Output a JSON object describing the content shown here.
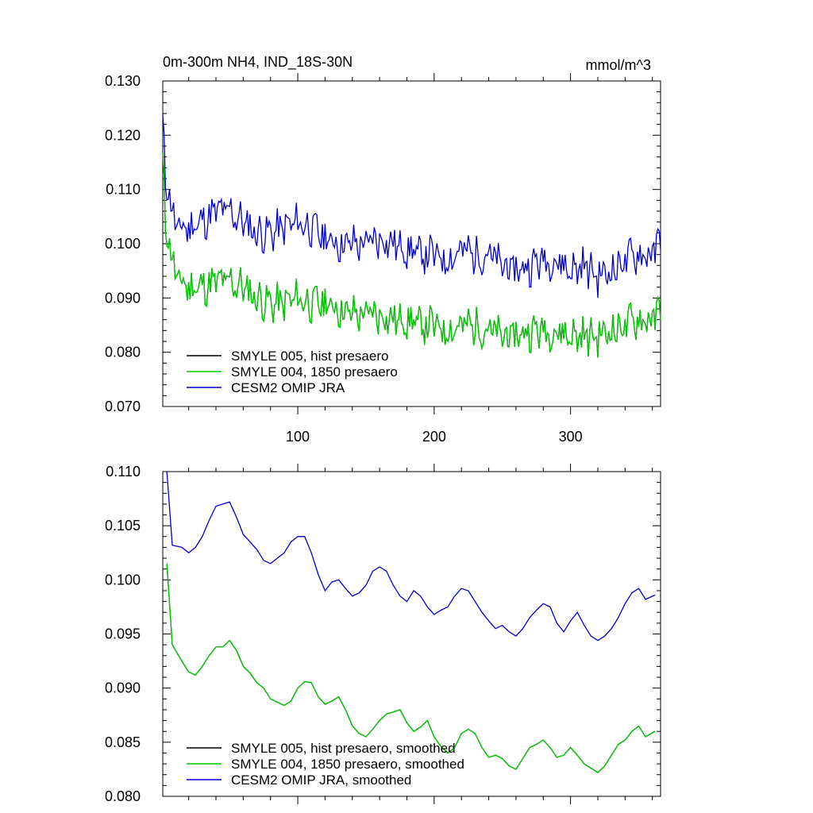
{
  "chart_data": [
    {
      "type": "line",
      "title": "0m-300m NH4, IND_18S-30N",
      "units": "mmol/m^3",
      "xlim": [
        1,
        366
      ],
      "ylim": [
        0.07,
        0.13
      ],
      "x_ticks": [
        100,
        200,
        300
      ],
      "x_tick_labels": [
        "100",
        "200",
        "300"
      ],
      "y_ticks": [
        0.07,
        0.08,
        0.09,
        0.1,
        0.11,
        0.12,
        0.13
      ],
      "y_tick_labels": [
        "0.070",
        "0.080",
        "0.090",
        "0.100",
        "0.110",
        "0.120",
        "0.130"
      ],
      "legend_position": "bottom-left",
      "noisy": true,
      "series": [
        {
          "name": "SMYLE 005, hist presaero",
          "color": "#000000",
          "x": [
            1,
            3,
            5,
            10,
            20,
            30,
            40,
            50,
            60,
            70,
            80,
            90,
            100,
            110,
            120,
            130,
            140,
            150,
            160,
            170,
            180,
            190,
            200,
            210,
            220,
            230,
            240,
            250,
            260,
            270,
            280,
            290,
            300,
            310,
            320,
            330,
            340,
            350,
            360,
            366
          ],
          "values": [
            0.115,
            0.103,
            0.102,
            0.094,
            0.092,
            0.092,
            0.093,
            0.093,
            0.092,
            0.09,
            0.089,
            0.089,
            0.09,
            0.089,
            0.089,
            0.088,
            0.087,
            0.087,
            0.087,
            0.086,
            0.086,
            0.085,
            0.085,
            0.084,
            0.085,
            0.085,
            0.084,
            0.083,
            0.083,
            0.084,
            0.084,
            0.084,
            0.083,
            0.083,
            0.083,
            0.084,
            0.085,
            0.086,
            0.086,
            0.088
          ]
        },
        {
          "name": "SMYLE 004, 1850 presaero",
          "color": "#00cc00",
          "x": [
            1,
            3,
            5,
            10,
            20,
            30,
            40,
            50,
            60,
            70,
            80,
            90,
            100,
            110,
            120,
            130,
            140,
            150,
            160,
            170,
            180,
            190,
            200,
            210,
            220,
            230,
            240,
            250,
            260,
            270,
            280,
            290,
            300,
            310,
            320,
            330,
            340,
            350,
            360,
            366
          ],
          "values": [
            0.115,
            0.103,
            0.102,
            0.094,
            0.092,
            0.092,
            0.093,
            0.093,
            0.092,
            0.09,
            0.089,
            0.089,
            0.09,
            0.089,
            0.089,
            0.088,
            0.087,
            0.087,
            0.087,
            0.086,
            0.086,
            0.085,
            0.085,
            0.084,
            0.085,
            0.085,
            0.084,
            0.083,
            0.083,
            0.084,
            0.084,
            0.084,
            0.083,
            0.083,
            0.083,
            0.084,
            0.085,
            0.086,
            0.086,
            0.088
          ]
        },
        {
          "name": "CESM2 OMIP JRA",
          "color": "#0000cc",
          "x": [
            1,
            3,
            5,
            10,
            20,
            30,
            40,
            50,
            60,
            70,
            80,
            90,
            100,
            110,
            120,
            130,
            140,
            150,
            160,
            170,
            180,
            190,
            200,
            210,
            220,
            230,
            240,
            250,
            260,
            270,
            280,
            290,
            300,
            310,
            320,
            330,
            340,
            350,
            360,
            366
          ],
          "values": [
            0.122,
            0.111,
            0.111,
            0.103,
            0.103,
            0.104,
            0.106,
            0.106,
            0.104,
            0.102,
            0.102,
            0.103,
            0.104,
            0.103,
            0.101,
            0.1,
            0.1,
            0.1,
            0.101,
            0.1,
            0.099,
            0.098,
            0.098,
            0.097,
            0.099,
            0.098,
            0.098,
            0.096,
            0.095,
            0.096,
            0.097,
            0.097,
            0.095,
            0.096,
            0.094,
            0.095,
            0.097,
            0.098,
            0.098,
            0.101
          ]
        }
      ]
    },
    {
      "type": "line",
      "title": "",
      "xlim": [
        1,
        366
      ],
      "ylim": [
        0.08,
        0.11
      ],
      "x_ticks": [
        100,
        200,
        300
      ],
      "x_tick_labels": [],
      "y_ticks": [
        0.08,
        0.085,
        0.09,
        0.095,
        0.1,
        0.105,
        0.11
      ],
      "y_tick_labels": [
        "0.080",
        "0.085",
        "0.090",
        "0.095",
        "0.100",
        "0.105",
        "0.110"
      ],
      "legend_position": "bottom-left",
      "noisy": false,
      "series": [
        {
          "name": "SMYLE 005, hist presaero, smoothed",
          "color": "#000000",
          "x": [
            4,
            8,
            15,
            20,
            25,
            30,
            35,
            40,
            45,
            50,
            55,
            60,
            65,
            70,
            75,
            80,
            90,
            95,
            100,
            105,
            110,
            115,
            120,
            125,
            130,
            135,
            140,
            145,
            150,
            155,
            160,
            165,
            170,
            175,
            180,
            185,
            190,
            195,
            200,
            205,
            210,
            215,
            220,
            225,
            230,
            235,
            240,
            245,
            250,
            255,
            260,
            265,
            270,
            275,
            280,
            285,
            290,
            295,
            300,
            305,
            310,
            315,
            320,
            325,
            330,
            335,
            340,
            345,
            350,
            355,
            362
          ],
          "values": [
            0.1015,
            0.094,
            0.0925,
            0.0915,
            0.0912,
            0.092,
            0.093,
            0.0938,
            0.0938,
            0.0944,
            0.0935,
            0.092,
            0.0914,
            0.0905,
            0.09,
            0.089,
            0.0884,
            0.0888,
            0.09,
            0.0906,
            0.0905,
            0.0892,
            0.0885,
            0.0888,
            0.0892,
            0.088,
            0.0865,
            0.0858,
            0.0855,
            0.0862,
            0.087,
            0.0876,
            0.0878,
            0.088,
            0.0868,
            0.086,
            0.0864,
            0.087,
            0.0855,
            0.0846,
            0.084,
            0.0845,
            0.0858,
            0.0862,
            0.0858,
            0.0845,
            0.0836,
            0.0838,
            0.0835,
            0.0828,
            0.0825,
            0.0835,
            0.0845,
            0.0848,
            0.0852,
            0.0845,
            0.0836,
            0.0838,
            0.0845,
            0.0838,
            0.083,
            0.0826,
            0.0822,
            0.0828,
            0.0838,
            0.0848,
            0.0852,
            0.086,
            0.0865,
            0.0855,
            0.086
          ]
        },
        {
          "name": "SMYLE 004, 1850 presaero, smoothed",
          "color": "#00cc00",
          "x": [
            4,
            8,
            15,
            20,
            25,
            30,
            35,
            40,
            45,
            50,
            55,
            60,
            65,
            70,
            75,
            80,
            90,
            95,
            100,
            105,
            110,
            115,
            120,
            125,
            130,
            135,
            140,
            145,
            150,
            155,
            160,
            165,
            170,
            175,
            180,
            185,
            190,
            195,
            200,
            205,
            210,
            215,
            220,
            225,
            230,
            235,
            240,
            245,
            250,
            255,
            260,
            265,
            270,
            275,
            280,
            285,
            290,
            295,
            300,
            305,
            310,
            315,
            320,
            325,
            330,
            335,
            340,
            345,
            350,
            355,
            362
          ],
          "values": [
            0.1015,
            0.094,
            0.0925,
            0.0915,
            0.0912,
            0.092,
            0.093,
            0.0938,
            0.0938,
            0.0944,
            0.0935,
            0.092,
            0.0914,
            0.0905,
            0.09,
            0.089,
            0.0884,
            0.0888,
            0.09,
            0.0906,
            0.0905,
            0.0892,
            0.0885,
            0.0888,
            0.0892,
            0.088,
            0.0865,
            0.0858,
            0.0855,
            0.0862,
            0.087,
            0.0876,
            0.0878,
            0.088,
            0.0868,
            0.086,
            0.0864,
            0.087,
            0.0855,
            0.0846,
            0.084,
            0.0845,
            0.0858,
            0.0862,
            0.0858,
            0.0845,
            0.0836,
            0.0838,
            0.0835,
            0.0828,
            0.0825,
            0.0835,
            0.0845,
            0.0848,
            0.0852,
            0.0845,
            0.0836,
            0.0838,
            0.0845,
            0.0838,
            0.083,
            0.0826,
            0.0822,
            0.0828,
            0.0838,
            0.0848,
            0.0852,
            0.086,
            0.0865,
            0.0855,
            0.086
          ]
        },
        {
          "name": "CESM2 OMIP JRA, smoothed",
          "color": "#0000cc",
          "x": [
            4,
            8,
            15,
            20,
            25,
            30,
            35,
            40,
            45,
            50,
            55,
            60,
            65,
            70,
            75,
            80,
            90,
            95,
            100,
            105,
            110,
            115,
            120,
            125,
            130,
            135,
            140,
            145,
            150,
            155,
            160,
            165,
            170,
            175,
            180,
            185,
            190,
            195,
            200,
            205,
            210,
            215,
            220,
            225,
            230,
            235,
            240,
            245,
            250,
            255,
            260,
            265,
            270,
            275,
            280,
            285,
            290,
            295,
            300,
            305,
            310,
            315,
            320,
            325,
            330,
            335,
            340,
            345,
            350,
            355,
            362
          ],
          "values": [
            0.11,
            0.1032,
            0.103,
            0.1025,
            0.103,
            0.104,
            0.1055,
            0.1068,
            0.107,
            0.1072,
            0.1058,
            0.1042,
            0.1035,
            0.1028,
            0.1018,
            0.1015,
            0.1025,
            0.1035,
            0.104,
            0.104,
            0.1025,
            0.1005,
            0.099,
            0.0998,
            0.1,
            0.0992,
            0.0985,
            0.0988,
            0.0995,
            0.1008,
            0.1012,
            0.1008,
            0.0995,
            0.0985,
            0.098,
            0.099,
            0.0985,
            0.0975,
            0.0968,
            0.0972,
            0.0975,
            0.0985,
            0.0992,
            0.099,
            0.098,
            0.097,
            0.0962,
            0.0955,
            0.0958,
            0.0952,
            0.0948,
            0.0955,
            0.0965,
            0.0972,
            0.0978,
            0.0975,
            0.096,
            0.0952,
            0.0962,
            0.097,
            0.0958,
            0.0948,
            0.0944,
            0.0948,
            0.0955,
            0.0965,
            0.0978,
            0.0988,
            0.0992,
            0.0982,
            0.0986
          ]
        }
      ]
    }
  ]
}
